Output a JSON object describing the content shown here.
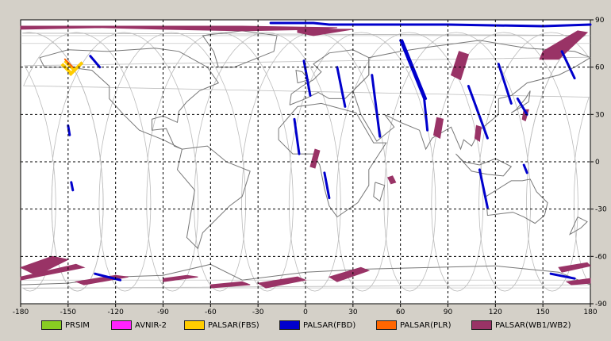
{
  "chart_data": {
    "type": "map",
    "projection": "equirectangular",
    "x_ticks": [
      "-180",
      "-150",
      "-120",
      "-90",
      "-60",
      "-30",
      "0",
      "30",
      "60",
      "90",
      "120",
      "150",
      "180"
    ],
    "y_ticks_right": [
      "90",
      "60",
      "30",
      "0",
      "-30",
      "-60",
      "-90"
    ],
    "xlim": [
      -180,
      180
    ],
    "ylim": [
      -90,
      90
    ],
    "grid": true,
    "legend_position": "bottom",
    "legend": [
      {
        "label": "PRSIM",
        "color": "#88cc22"
      },
      {
        "label": "AVNIR-2",
        "color": "#ff22ff"
      },
      {
        "label": "PALSAR(FBS)",
        "color": "#ffcc00"
      },
      {
        "label": "PALSAR(FBD)",
        "color": "#0000cc"
      },
      {
        "label": "PALSAR(PLR)",
        "color": "#ff6600"
      },
      {
        "label": "PALSAR(WB1/WB2)",
        "color": "#993366"
      }
    ],
    "colors": {
      "map_background": "#ffffff",
      "grid": "#000000",
      "coastline": "#777777",
      "orbit_track": "#bbbbbb"
    }
  }
}
